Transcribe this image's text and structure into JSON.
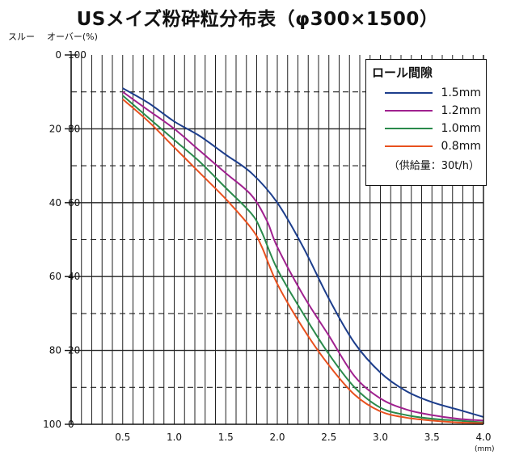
{
  "chart_data": {
    "type": "line",
    "title": "USメイズ粉砕粒分布表（φ300×1500）",
    "left_axis_header": "スルー",
    "right_axis_header": "オーバー(%)",
    "x_unit": "(mm)",
    "xlim": [
      0,
      4.0
    ],
    "ylim": [
      0,
      100
    ],
    "x_ticks": [
      "0.5",
      "1.0",
      "1.5",
      "2.0",
      "2.5",
      "3.0",
      "3.5",
      "4.0"
    ],
    "x_tick_values": [
      0.5,
      1.0,
      1.5,
      2.0,
      2.5,
      3.0,
      3.5,
      4.0
    ],
    "y_ticks_over": [
      "100",
      "80",
      "60",
      "40",
      "20",
      "0"
    ],
    "y_ticks_over_values": [
      100,
      80,
      60,
      40,
      20,
      0
    ],
    "y_ticks_through": [
      "0",
      "20",
      "40",
      "60",
      "80",
      "100"
    ],
    "grid": true,
    "legend": {
      "title": "ロール間隙",
      "position": "top-right",
      "note": "（供給量：30t/h）"
    },
    "series": [
      {
        "name": "1.5mm",
        "color": "#1d3e8c",
        "x": [
          0.5,
          0.75,
          1.0,
          1.25,
          1.5,
          1.75,
          2.0,
          2.25,
          2.5,
          2.75,
          3.0,
          3.25,
          3.5,
          3.75,
          4.0
        ],
        "y": [
          91,
          87,
          82,
          78,
          73,
          68,
          60,
          48,
          34,
          22,
          14,
          9,
          6,
          4,
          2
        ]
      },
      {
        "name": "1.2mm",
        "color": "#a0218f",
        "x": [
          0.5,
          0.75,
          1.0,
          1.25,
          1.5,
          1.75,
          1.9,
          2.0,
          2.25,
          2.5,
          2.75,
          3.0,
          3.25,
          3.5,
          3.75,
          4.0
        ],
        "y": [
          90,
          85,
          80,
          74,
          68,
          62,
          55,
          48,
          35,
          24,
          13,
          7,
          4,
          2.5,
          1.5,
          1
        ]
      },
      {
        "name": "1.0mm",
        "color": "#2a8a4b",
        "x": [
          0.5,
          0.75,
          1.0,
          1.25,
          1.5,
          1.75,
          1.85,
          2.0,
          2.25,
          2.5,
          2.75,
          3.0,
          3.25,
          3.5,
          3.75,
          4.0
        ],
        "y": [
          89,
          83,
          77,
          71,
          64,
          57,
          52,
          42,
          30,
          19,
          10,
          4.5,
          2.5,
          1.5,
          1,
          0.5
        ]
      },
      {
        "name": "0.8mm",
        "color": "#e8501e",
        "x": [
          0.5,
          0.75,
          1.0,
          1.25,
          1.5,
          1.75,
          1.85,
          2.0,
          2.25,
          2.5,
          2.75,
          3.0,
          3.25,
          3.5,
          3.75,
          4.0
        ],
        "y": [
          88,
          82,
          75,
          68,
          61,
          53,
          48,
          38,
          26,
          16,
          8,
          3.5,
          1.8,
          1,
          0.5,
          0.3
        ]
      }
    ]
  }
}
